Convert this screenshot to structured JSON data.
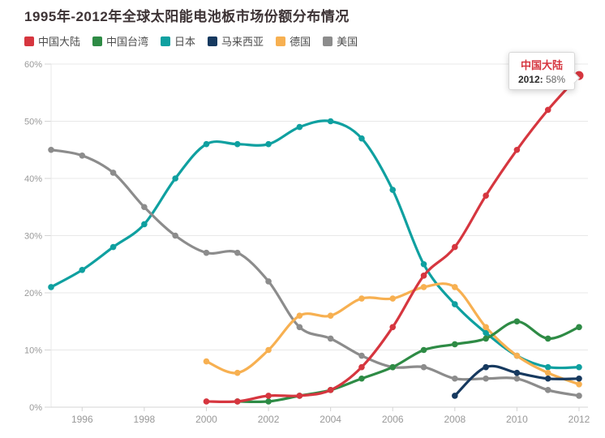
{
  "title": "1995年-2012年全球太阳能电池板市场份额分布情况",
  "tooltip": {
    "series": "中国大陆",
    "year_label": "2012:",
    "value_label": "58%"
  },
  "colors": {
    "china_mainland": "#d6363f",
    "taiwan": "#2e8b45",
    "japan": "#0fa0a0",
    "malaysia": "#16395f",
    "germany": "#f7b051",
    "usa": "#8c8c8c",
    "grid": "#e8e8e8",
    "axis": "#d4d4d4",
    "tick_text": "#999999"
  },
  "chart_data": {
    "type": "line",
    "title": "1995年-2012年全球太阳能电池板市场份额分布情况",
    "xlabel": "",
    "ylabel": "",
    "x_range": [
      1995,
      2012
    ],
    "x_tick_labels": [
      "1996",
      "1998",
      "2000",
      "2002",
      "2004",
      "2006",
      "2008",
      "2010",
      "2012"
    ],
    "x_tick_years": [
      1996,
      1998,
      2000,
      2002,
      2004,
      2006,
      2008,
      2010,
      2012
    ],
    "y_tick_labels": [
      "0%",
      "10%",
      "20%",
      "30%",
      "40%",
      "50%",
      "60%"
    ],
    "ylim": [
      0,
      60
    ],
    "grid": true,
    "legend_position": "top",
    "smooth": true,
    "highlight": {
      "series": "中国大陆",
      "year": 2012,
      "value": 58
    },
    "draw_order": [
      2,
      5,
      4,
      1,
      3,
      0
    ],
    "series": [
      {
        "name": "中国大陆",
        "color": "#d6363f",
        "points": [
          [
            2000,
            1
          ],
          [
            2001,
            1
          ],
          [
            2002,
            2
          ],
          [
            2003,
            2
          ],
          [
            2004,
            3
          ],
          [
            2005,
            7
          ],
          [
            2006,
            14
          ],
          [
            2007,
            23
          ],
          [
            2008,
            28
          ],
          [
            2009,
            37
          ],
          [
            2010,
            45
          ],
          [
            2011,
            52
          ],
          [
            2012,
            58
          ]
        ]
      },
      {
        "name": "中国台湾",
        "color": "#2e8b45",
        "points": [
          [
            2001,
            1
          ],
          [
            2002,
            1
          ],
          [
            2003,
            2
          ],
          [
            2004,
            3
          ],
          [
            2005,
            5
          ],
          [
            2006,
            7
          ],
          [
            2007,
            10
          ],
          [
            2008,
            11
          ],
          [
            2009,
            12
          ],
          [
            2010,
            15
          ],
          [
            2011,
            12
          ],
          [
            2012,
            14
          ]
        ]
      },
      {
        "name": "日本",
        "color": "#0fa0a0",
        "points": [
          [
            1995,
            21
          ],
          [
            1996,
            24
          ],
          [
            1997,
            28
          ],
          [
            1998,
            32
          ],
          [
            1999,
            40
          ],
          [
            2000,
            46
          ],
          [
            2001,
            46
          ],
          [
            2002,
            46
          ],
          [
            2003,
            49
          ],
          [
            2004,
            50
          ],
          [
            2005,
            47
          ],
          [
            2006,
            38
          ],
          [
            2007,
            25
          ],
          [
            2008,
            18
          ],
          [
            2009,
            13
          ],
          [
            2010,
            9
          ],
          [
            2011,
            7
          ],
          [
            2012,
            7
          ]
        ]
      },
      {
        "name": "马来西亚",
        "color": "#16395f",
        "points": [
          [
            2008,
            2
          ],
          [
            2009,
            7
          ],
          [
            2010,
            6
          ],
          [
            2011,
            5
          ],
          [
            2012,
            5
          ]
        ]
      },
      {
        "name": "德国",
        "color": "#f7b051",
        "points": [
          [
            2000,
            8
          ],
          [
            2001,
            6
          ],
          [
            2002,
            10
          ],
          [
            2003,
            16
          ],
          [
            2004,
            16
          ],
          [
            2005,
            19
          ],
          [
            2006,
            19
          ],
          [
            2007,
            21
          ],
          [
            2008,
            21
          ],
          [
            2009,
            14
          ],
          [
            2010,
            9
          ],
          [
            2011,
            6
          ],
          [
            2012,
            4
          ]
        ]
      },
      {
        "name": "美国",
        "color": "#8c8c8c",
        "points": [
          [
            1995,
            45
          ],
          [
            1996,
            44
          ],
          [
            1997,
            41
          ],
          [
            1998,
            35
          ],
          [
            1999,
            30
          ],
          [
            2000,
            27
          ],
          [
            2001,
            27
          ],
          [
            2002,
            22
          ],
          [
            2003,
            14
          ],
          [
            2004,
            12
          ],
          [
            2005,
            9
          ],
          [
            2006,
            7
          ],
          [
            2007,
            7
          ],
          [
            2008,
            5
          ],
          [
            2009,
            5
          ],
          [
            2010,
            5
          ],
          [
            2011,
            3
          ],
          [
            2012,
            2
          ]
        ]
      }
    ]
  }
}
